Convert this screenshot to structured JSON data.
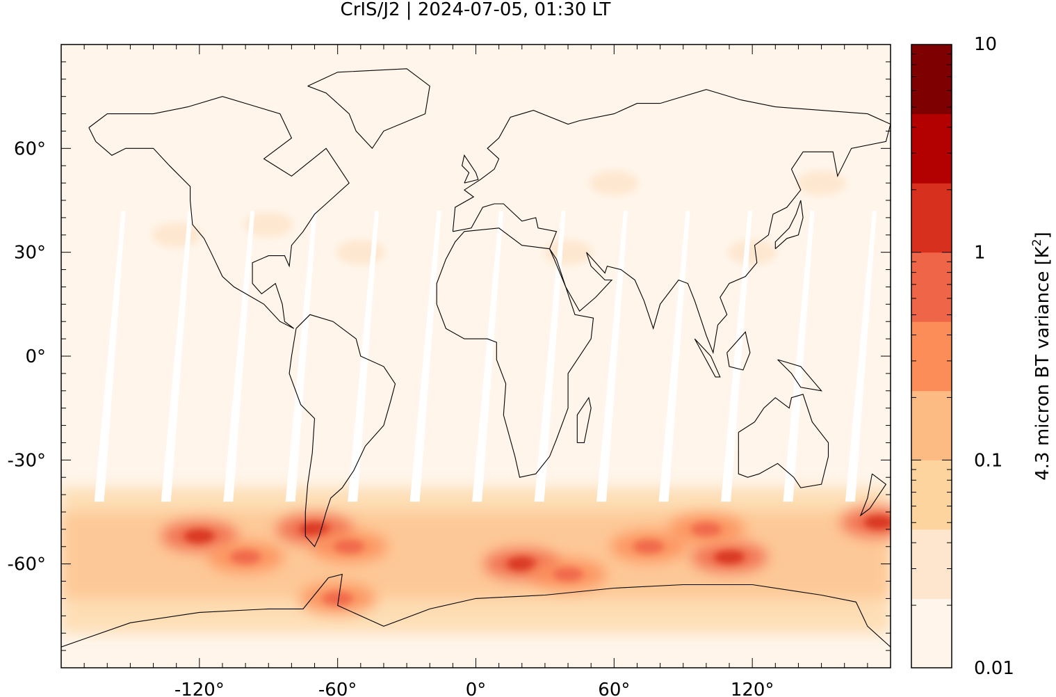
{
  "chart_data": {
    "type": "heatmap",
    "title": "CrIS/J2 | 2024-07-05, 01:30 LT",
    "xlabel": "",
    "ylabel": "",
    "xlim": [
      -180,
      180
    ],
    "ylim": [
      -90,
      90
    ],
    "x_ticks": [
      {
        "value": -120,
        "label": "-120°"
      },
      {
        "value": -60,
        "label": "-60°"
      },
      {
        "value": 0,
        "label": "0°"
      },
      {
        "value": 60,
        "label": "60°"
      },
      {
        "value": 120,
        "label": "120°"
      }
    ],
    "y_ticks": [
      {
        "value": 60,
        "label": "60°"
      },
      {
        "value": 30,
        "label": "30°"
      },
      {
        "value": 0,
        "label": "0°"
      },
      {
        "value": -30,
        "label": "-30°"
      },
      {
        "value": -60,
        "label": "-60°"
      }
    ],
    "colorbar": {
      "label": "4.3 micron BT variance [K²]",
      "label_main": "4.3 micron BT variance [K",
      "label_sup": "2",
      "label_end": "]",
      "scale": "log",
      "range": [
        0.01,
        10
      ],
      "tick_labels": [
        {
          "value": 10,
          "label": "10"
        },
        {
          "value": 1,
          "label": "1"
        },
        {
          "value": 0.1,
          "label": "0.1"
        },
        {
          "value": 0.01,
          "label": "0.01"
        }
      ],
      "colors": [
        "#fff5eb",
        "#fee6ce",
        "#fdd49e",
        "#fdbb84",
        "#fc8d59",
        "#ef6548",
        "#d7301f",
        "#b30000",
        "#7f0000"
      ]
    },
    "description_values": {
      "gap_longitudes_at_equator": [
        -162,
        -133,
        -106,
        -79,
        -52,
        -25,
        2,
        29,
        56,
        83,
        110,
        137,
        164
      ],
      "enhanced_regions": [
        {
          "lon": -70,
          "lat": -50,
          "value": 1.0
        },
        {
          "lon": -120,
          "lat": -52,
          "value": 1.5
        },
        {
          "lon": -100,
          "lat": -58,
          "value": 0.8
        },
        {
          "lon": -55,
          "lat": -55,
          "value": 0.9
        },
        {
          "lon": 20,
          "lat": -60,
          "value": 1.0
        },
        {
          "lon": 40,
          "lat": -63,
          "value": 0.7
        },
        {
          "lon": 75,
          "lat": -55,
          "value": 0.6
        },
        {
          "lon": 110,
          "lat": -58,
          "value": 1.5
        },
        {
          "lon": 100,
          "lat": -50,
          "value": 0.8
        },
        {
          "lon": 175,
          "lat": -48,
          "value": 1.0
        },
        {
          "lon": -60,
          "lat": -70,
          "value": 0.7
        }
      ]
    }
  }
}
